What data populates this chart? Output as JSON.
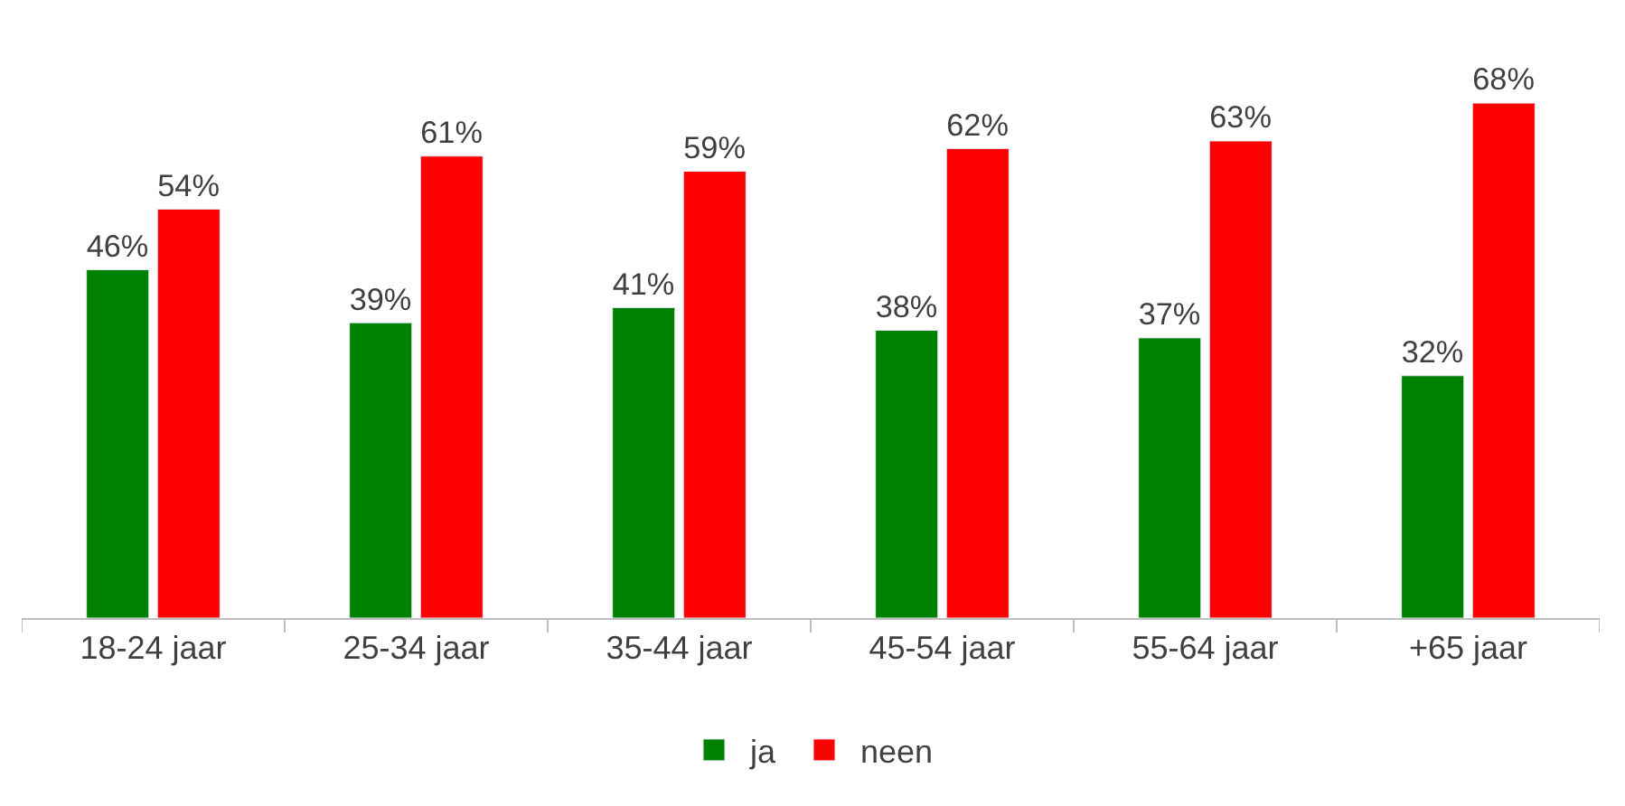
{
  "chart_data": {
    "type": "bar",
    "categories": [
      "18-24 jaar",
      "25-34 jaar",
      "35-44 jaar",
      "45-54 jaar",
      "55-64 jaar",
      "+65 jaar"
    ],
    "series": [
      {
        "name": "ja",
        "color": "#008000",
        "values": [
          46,
          39,
          41,
          38,
          37,
          32
        ],
        "value_labels": [
          "46%",
          "39%",
          "41%",
          "38%",
          "37%",
          "32%"
        ]
      },
      {
        "name": "neen",
        "color": "#ff0000",
        "values": [
          54,
          61,
          59,
          62,
          63,
          68
        ],
        "value_labels": [
          "54%",
          "61%",
          "59%",
          "62%",
          "63%",
          "68%"
        ]
      }
    ],
    "legend": "bottom",
    "tick_labels": "x"
  }
}
